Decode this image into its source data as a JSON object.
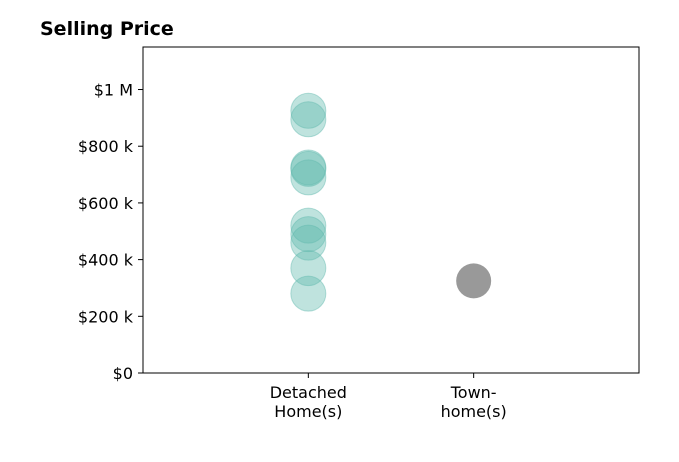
{
  "chart_data": {
    "type": "scatter",
    "title": "Selling Price",
    "xlabel": "",
    "ylabel": "",
    "categories": [
      [
        "Detached",
        "Home(s)"
      ],
      [
        "Town-",
        "home(s)"
      ]
    ],
    "xlim": [
      -1,
      2
    ],
    "ylim": [
      0,
      1150000
    ],
    "y_ticks": [
      0,
      200000,
      400000,
      600000,
      800000,
      1000000
    ],
    "y_tick_labels": [
      "$0",
      "$200 k",
      "$400 k",
      "$600 k",
      "$800 k",
      "$1 M"
    ],
    "grid": false,
    "legend": "none",
    "colors": {
      "Detached Home(s)": "#5fb8ad",
      "Town-home(s)": "#f3ddaa"
    },
    "series": [
      {
        "category_index": 0,
        "values": [
          925000,
          895000,
          725000,
          720000,
          690000,
          520000,
          490000,
          460000,
          370000,
          280000
        ]
      },
      {
        "category_index": 1,
        "values": [
          325000
        ]
      }
    ]
  }
}
